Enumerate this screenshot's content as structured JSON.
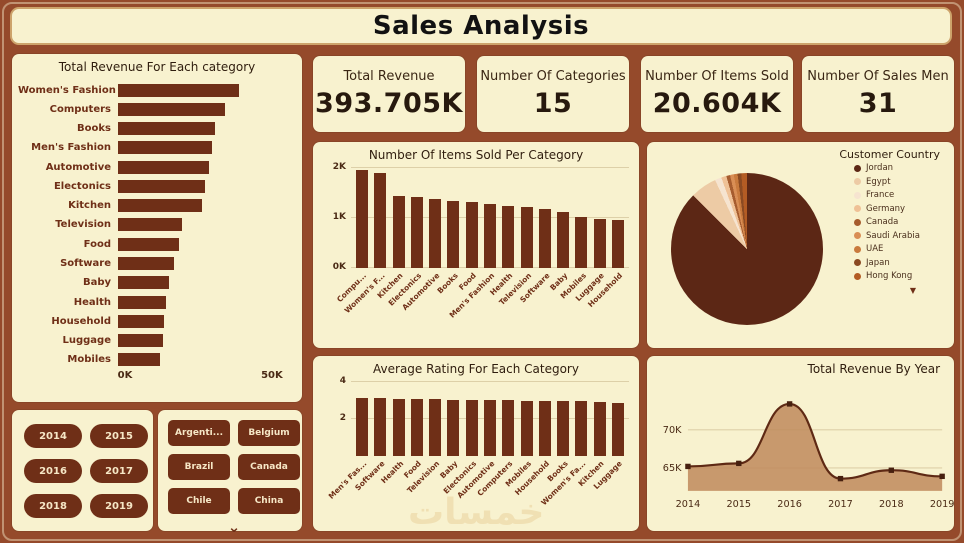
{
  "page": {
    "title": "Sales Analysis",
    "watermark": "خمسات"
  },
  "colors": {
    "background": "#954A2B",
    "panel": "#F8F2CF",
    "bar": "#6F2F17",
    "line": "#5E2914",
    "area_fill": "#C08A5C"
  },
  "icons": {
    "chevron_down": "⌄",
    "legend_more": "▼"
  },
  "kpis": [
    {
      "label": "Total Revenue",
      "value": "393.705K"
    },
    {
      "label": "Number Of Categories",
      "value": "15"
    },
    {
      "label": "Number Of Items Sold",
      "value": "20.604K"
    },
    {
      "label": "Number Of Sales Men",
      "value": "31"
    }
  ],
  "slicers": {
    "years": [
      "2014",
      "2015",
      "2016",
      "2017",
      "2018",
      "2019"
    ],
    "countries": [
      "Argenti...",
      "Belgium",
      "Brazil",
      "Canada",
      "Chile",
      "China"
    ]
  },
  "chart_data": [
    {
      "type": "bar",
      "orientation": "horizontal",
      "title": "Total Revenue For Each category",
      "categories": [
        "Women's Fashion",
        "Computers",
        "Books",
        "Men's Fashion",
        "Automotive",
        "Electonics",
        "Kitchen",
        "Television",
        "Food",
        "Software",
        "Baby",
        "Health",
        "Household",
        "Luggage",
        "Mobiles"
      ],
      "values": [
        42,
        37,
        33.5,
        32.5,
        31.5,
        30,
        29,
        22,
        21,
        19.5,
        17.5,
        16.5,
        16,
        15.5,
        14.5
      ],
      "unit": "K",
      "xlabel": "",
      "ylabel": "",
      "xlim": [
        0,
        50
      ],
      "xticks": [
        {
          "label": "0K",
          "value": 0
        },
        {
          "label": "50K",
          "value": 50
        }
      ],
      "grid": false
    },
    {
      "type": "bar",
      "orientation": "vertical",
      "title": "Number Of Items Sold Per Category",
      "categories": [
        "Compu...",
        "Women's F...",
        "Kitchen",
        "Electonics",
        "Automotive",
        "Books",
        "Food",
        "Men's Fashion",
        "Health",
        "Television",
        "Software",
        "Baby",
        "Mobiles",
        "Luggage",
        "Household"
      ],
      "values": [
        1.97,
        1.9,
        1.45,
        1.42,
        1.38,
        1.34,
        1.32,
        1.28,
        1.25,
        1.22,
        1.18,
        1.12,
        1.03,
        0.98,
        0.96
      ],
      "unit": "K",
      "xlabel": "",
      "ylabel": "",
      "ylim": [
        0,
        2
      ],
      "yticks": [
        {
          "label": "0K",
          "value": 0
        },
        {
          "label": "1K",
          "value": 1
        },
        {
          "label": "2K",
          "value": 2
        }
      ],
      "grid": true
    },
    {
      "type": "pie",
      "title": "Customer Country",
      "legend_position": "right",
      "slices": [
        {
          "label": "Jordan",
          "pct": 87.5,
          "color": "#5C2715"
        },
        {
          "label": "Egypt",
          "pct": 5.6,
          "color": "#EDCBA5"
        },
        {
          "label": "France",
          "pct": 1.4,
          "color": "#F6E4D0"
        },
        {
          "label": "Germany",
          "pct": 1.1,
          "color": "#EFC196"
        },
        {
          "label": "Canada",
          "pct": 0.8,
          "color": "#A65C2E"
        },
        {
          "label": "Saudi Arabia",
          "pct": 0.8,
          "color": "#D98E55"
        },
        {
          "label": "UAE",
          "pct": 0.8,
          "color": "#C97A3D"
        },
        {
          "label": "Japan",
          "pct": 0.8,
          "color": "#8B4A22"
        },
        {
          "label": "Hong Kong",
          "pct": 1.2,
          "color": "#B35C24"
        }
      ]
    },
    {
      "type": "bar",
      "orientation": "vertical",
      "title": "Average Rating For Each Category",
      "categories": [
        "Men's Fas...",
        "Software",
        "Health",
        "Food",
        "Television",
        "Baby",
        "Electonics",
        "Automotive",
        "Computers",
        "Mobiles",
        "Household",
        "Books",
        "Women's Fa...",
        "Kitchen",
        "Luggage"
      ],
      "values": [
        3.15,
        3.12,
        3.1,
        3.08,
        3.06,
        3.05,
        3.03,
        3.02,
        3.01,
        3.0,
        2.98,
        2.96,
        2.95,
        2.92,
        2.88
      ],
      "xlabel": "",
      "ylabel": "",
      "ylim": [
        0,
        4
      ],
      "yticks": [
        {
          "label": "2",
          "value": 2
        },
        {
          "label": "4",
          "value": 4
        }
      ],
      "grid": true
    },
    {
      "type": "area",
      "title": "Total Revenue By Year",
      "x": [
        2014,
        2015,
        2016,
        2017,
        2018,
        2019
      ],
      "values": [
        65.2,
        65.6,
        73.4,
        63.6,
        64.7,
        63.9
      ],
      "unit": "K",
      "xlabel": "",
      "ylabel": "",
      "ylim": [
        62,
        75
      ],
      "yticks": [
        {
          "label": "65K",
          "value": 65
        },
        {
          "label": "70K",
          "value": 70
        }
      ],
      "grid": true,
      "legend_position": "none"
    }
  ]
}
